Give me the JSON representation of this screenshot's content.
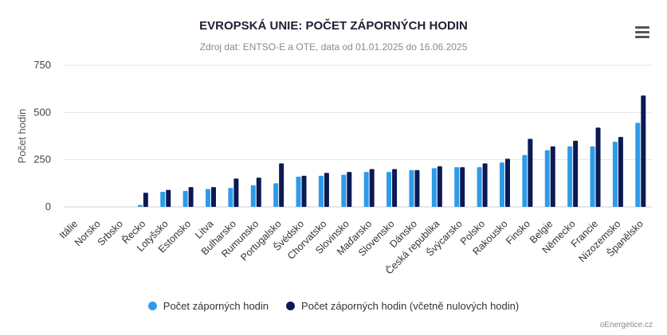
{
  "chart_data": {
    "type": "bar",
    "title": "EVROPSKÁ UNIE: POČET ZÁPORNÝCH HODIN",
    "subtitle": "Zdroj dat: ENTSO-E a OTE, data od 01.01.2025 do 16.06.2025",
    "ylabel": "Počet hodin",
    "xlabel": "",
    "ylim": [
      0,
      750
    ],
    "yticks": [
      0,
      250,
      500,
      750
    ],
    "grid": true,
    "legend_position": "bottom",
    "categories": [
      "Itálie",
      "Norsko",
      "Srbsko",
      "Řecko",
      "Lotyšsko",
      "Estonsko",
      "Litva",
      "Bulharsko",
      "Rumunsko",
      "Portugalsko",
      "Švédsko",
      "Chorvatsko",
      "Slovinsko",
      "Maďarsko",
      "Slovensko",
      "Dánsko",
      "Česká republika",
      "Švýcarsko",
      "Polsko",
      "Rakousko",
      "Finsko",
      "Belgie",
      "Německo",
      "Francie",
      "Nizozemsko",
      "Španělsko"
    ],
    "series": [
      {
        "name": "Počet záporných hodin",
        "color": "#2E9BEA",
        "values": [
          0,
          0,
          0,
          10,
          80,
          85,
          95,
          100,
          115,
          125,
          160,
          165,
          170,
          185,
          185,
          195,
          205,
          210,
          210,
          235,
          275,
          300,
          320,
          320,
          345,
          445
        ]
      },
      {
        "name": "Počet záporných hodin (včetně nulových hodin)",
        "color": "#0B1A55",
        "values": [
          0,
          0,
          0,
          75,
          90,
          105,
          105,
          150,
          155,
          230,
          165,
          180,
          185,
          200,
          200,
          195,
          215,
          210,
          230,
          255,
          360,
          320,
          350,
          420,
          370,
          590
        ]
      }
    ]
  },
  "menu_icon": "hamburger-icon",
  "credit": "oEnergetice.cz"
}
